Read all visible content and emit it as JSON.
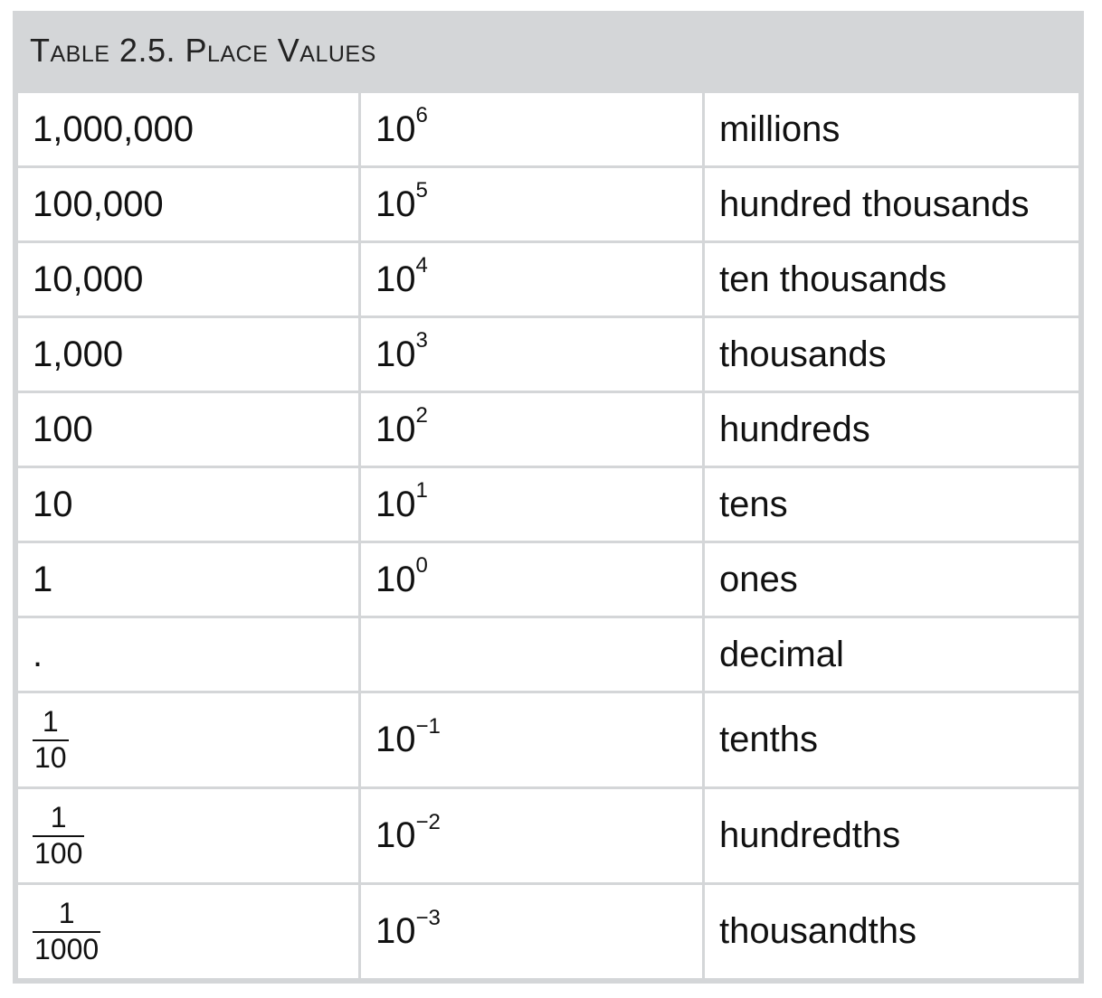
{
  "caption": "Table 2.5. Place Values",
  "rows": [
    {
      "value": "1,000,000",
      "base": "10",
      "exp": "6",
      "name": "millions"
    },
    {
      "value": "100,000",
      "base": "10",
      "exp": "5",
      "name": "hundred thousands"
    },
    {
      "value": "10,000",
      "base": "10",
      "exp": "4",
      "name": "ten thousands"
    },
    {
      "value": "1,000",
      "base": "10",
      "exp": "3",
      "name": "thousands"
    },
    {
      "value": "100",
      "base": "10",
      "exp": "2",
      "name": "hundreds"
    },
    {
      "value": "10",
      "base": "10",
      "exp": "1",
      "name": "tens"
    },
    {
      "value": "1",
      "base": "10",
      "exp": "0",
      "name": "ones"
    },
    {
      "value": ".",
      "base": "",
      "exp": "",
      "name": "decimal"
    },
    {
      "num": "1",
      "den": "10",
      "base": "10",
      "exp": "−1",
      "name": "tenths"
    },
    {
      "num": "1",
      "den": "100",
      "base": "10",
      "exp": "−2",
      "name": "hundredths"
    },
    {
      "num": "1",
      "den": "1000",
      "base": "10",
      "exp": "−3",
      "name": "thousandths"
    }
  ]
}
